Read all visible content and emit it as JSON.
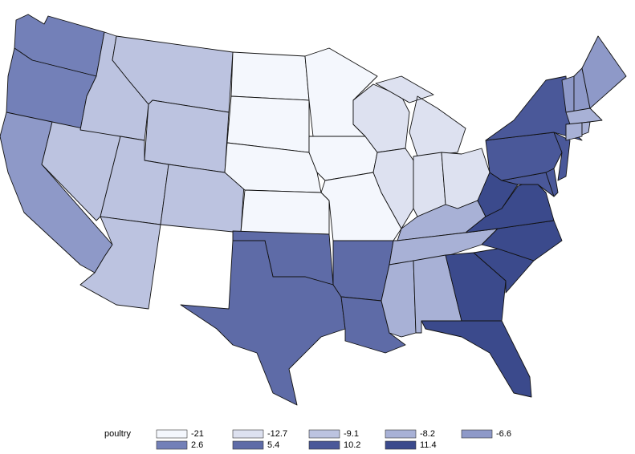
{
  "chart_data": {
    "type": "choropleth",
    "legend": {
      "title": "poultry",
      "values": [
        -21,
        -12.7,
        -9.1,
        -8.2,
        -6.6,
        2.6,
        5.4,
        10.2,
        11.4
      ],
      "colors": [
        "#f4f7fd",
        "#dde1f0",
        "#bcc3e0",
        "#a8b1d6",
        "#8e99c8",
        "#7380b8",
        "#5e6ba7",
        "#4a5899",
        "#3b4a8c"
      ]
    },
    "region_values": [
      2.6,
      2.6,
      -6.6,
      -9.1,
      -9.1,
      -9.1,
      -9.1,
      -9.1,
      -9.1,
      -9.1,
      -21,
      -21,
      -21,
      -21,
      5.4,
      5.4,
      -21,
      -21,
      -21,
      5.4,
      5.4,
      -12.7,
      -12.7,
      -12.7,
      -12.7,
      -12.7,
      -8.2,
      -8.2,
      -8.2,
      -8.2,
      11.4,
      11.4,
      11.4,
      11.4,
      11.4,
      11.4,
      10.2,
      10.2,
      10.2,
      10.2,
      10.2,
      -6.6,
      -6.6,
      -6.6,
      -8.2,
      -8.2,
      -8.2
    ]
  }
}
